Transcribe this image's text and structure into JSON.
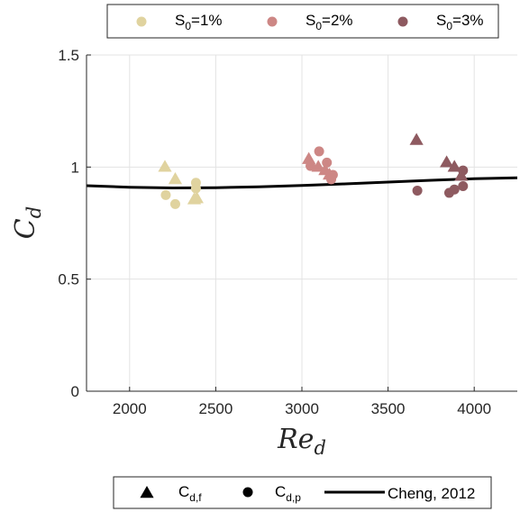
{
  "chart_data": {
    "type": "scatter",
    "xlabel": "Re_d",
    "ylabel": "C_d",
    "xlim": [
      1750,
      4250
    ],
    "ylim": [
      0,
      1.5
    ],
    "x_ticks": [
      2000,
      2500,
      3000,
      3500,
      4000
    ],
    "y_ticks": [
      0,
      0.5,
      1,
      1.5
    ],
    "y_tick_labels": [
      "0",
      "0.5",
      "1",
      "1.5"
    ],
    "grid": true,
    "slope_legend": {
      "placement": "top",
      "entries": [
        {
          "label": "S",
          "sub": "0",
          "suffix": "=1%",
          "color": "#E0D39F"
        },
        {
          "label": "S",
          "sub": "0",
          "suffix": "=2%",
          "color": "#CD8785"
        },
        {
          "label": "S",
          "sub": "0",
          "suffix": "=3%",
          "color": "#8E5A60"
        }
      ]
    },
    "marker_legend": {
      "placement": "bottom",
      "entries": [
        {
          "marker": "triangle",
          "label": "C",
          "sub": "d,f"
        },
        {
          "marker": "circle",
          "label": "C",
          "sub": "d,p"
        },
        {
          "marker": "line",
          "label": "Cheng, 2012"
        }
      ]
    },
    "series": [
      {
        "group": "S0=1%",
        "marker": "triangle",
        "color": "#E0D39F",
        "points": [
          [
            2205,
            1.0
          ],
          [
            2265,
            0.945
          ],
          [
            2375,
            0.855
          ],
          [
            2390,
            0.86
          ]
        ]
      },
      {
        "group": "S0=1%",
        "marker": "circle",
        "color": "#E0D39F",
        "points": [
          [
            2210,
            0.875
          ],
          [
            2265,
            0.835
          ],
          [
            2385,
            0.93
          ],
          [
            2385,
            0.905
          ]
        ]
      },
      {
        "group": "S0=2%",
        "marker": "triangle",
        "color": "#CD8785",
        "points": [
          [
            3040,
            1.035
          ],
          [
            3095,
            1.0
          ],
          [
            3135,
            0.985
          ],
          [
            3160,
            0.965
          ]
        ]
      },
      {
        "group": "S0=2%",
        "marker": "circle",
        "color": "#CD8785",
        "points": [
          [
            3050,
            1.005
          ],
          [
            3100,
            1.07
          ],
          [
            3145,
            1.02
          ],
          [
            3180,
            0.965
          ],
          [
            3170,
            0.945
          ]
        ]
      },
      {
        "group": "S0=3%",
        "marker": "triangle",
        "color": "#8E5A60",
        "points": [
          [
            3665,
            1.12
          ],
          [
            3840,
            1.02
          ],
          [
            3885,
            1.0
          ],
          [
            3925,
            0.96
          ]
        ]
      },
      {
        "group": "S0=3%",
        "marker": "circle",
        "color": "#8E5A60",
        "points": [
          [
            3670,
            0.895
          ],
          [
            3855,
            0.885
          ],
          [
            3885,
            0.9
          ],
          [
            3935,
            0.915
          ],
          [
            3935,
            0.985
          ]
        ]
      },
      {
        "name": "Cheng, 2012",
        "type": "line",
        "color": "#000000",
        "points": [
          [
            1750,
            0.917
          ],
          [
            2000,
            0.91
          ],
          [
            2250,
            0.907
          ],
          [
            2500,
            0.908
          ],
          [
            2750,
            0.912
          ],
          [
            3000,
            0.918
          ],
          [
            3250,
            0.925
          ],
          [
            3500,
            0.933
          ],
          [
            3750,
            0.941
          ],
          [
            4000,
            0.948
          ],
          [
            4250,
            0.952
          ]
        ]
      }
    ]
  }
}
